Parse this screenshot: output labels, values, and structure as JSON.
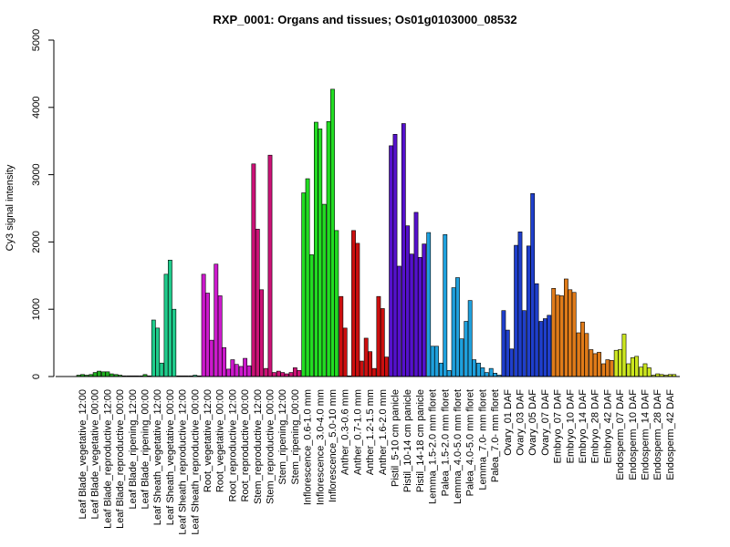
{
  "chart_data": {
    "type": "bar",
    "title": "RXP_0001: Organs and tissues; Os01g0103000_08532",
    "xlabel": "",
    "ylabel": "Cy3 signal intensity",
    "ylim": [
      0,
      5000
    ],
    "yticks": [
      0,
      1000,
      2000,
      3000,
      4000,
      5000
    ],
    "grid": false,
    "legend": "none",
    "categories": [
      "Leaf Blade_vegetative_12:00",
      "Leaf Blade_vegetative_00:00",
      "Leaf Blade_reproductive_12:00",
      "Leaf Blade_reproductive_00:00",
      "Leaf Blade_ripening_12:00",
      "Leaf Blade_ripening_00:00",
      "Leaf Sheath_vegetative_12:00",
      "Leaf Sheath_vegetative_00:00",
      "Leaf Sheath_reproductive_12:00",
      "Leaf Sheath_reproductive_00:00",
      "Root_vegetative_12:00",
      "Root_vegetative_00:00",
      "Root_reproductive_12:00",
      "Root_reproductive_00:00",
      "Stem_reproductive_12:00",
      "Stem_reproductive_00:00",
      "Stem_ripening_12:00",
      "Stem_ripening_00:00",
      "Inflorescence_0.6-1.0 mm",
      "Inflorescence_3.0-4.0 mm",
      "Inflorescence_5.0-10 mm",
      "Anther_0.3-0.6 mm",
      "Anther_0.7-1.0 mm",
      "Anther_1.2-1.5 mm",
      "Anther_1.6-2.0 mm",
      "Pistil_5-10 cm panicle",
      "Pistil_10-14 cm panicle",
      "Pistil_14-18 cm panicle",
      "Lemma_1.5-2.0 mm floret",
      "Palea_1.5-2.0 mm floret",
      "Lemma_4.0-5.0 mm floret",
      "Palea_4.0-5.0 mm floret",
      "Lemma_7.0- mm floret",
      "Palea_7.0- mm floret",
      "Ovary_01 DAF",
      "Ovary_03 DAF",
      "Ovary_05 DAF",
      "Ovary_07 DAF",
      "Embryo_07 DAF",
      "Embryo_10 DAF",
      "Embryo_14 DAF",
      "Embryo_28 DAF",
      "Embryo_42 DAF",
      "Endosperm_07 DAF",
      "Endosperm_10 DAF",
      "Endosperm_14 DAF",
      "Endosperm_28 DAF",
      "Endosperm_42 DAF"
    ],
    "groups": [
      {
        "color": "#1fae1f",
        "values": [
          20,
          30,
          20
        ]
      },
      {
        "color": "#1fae1f",
        "values": [
          30,
          60,
          80
        ]
      },
      {
        "color": "#1fae1f",
        "values": [
          70,
          70,
          40
        ]
      },
      {
        "color": "#1fae1f",
        "values": [
          30,
          20,
          10
        ]
      },
      {
        "color": "#1fae1f",
        "values": [
          10,
          10,
          10
        ]
      },
      {
        "color": "#1fae1f",
        "values": [
          10,
          30,
          10
        ]
      },
      {
        "color": "#1fcc8c",
        "values": [
          840,
          720,
          200
        ]
      },
      {
        "color": "#1fcc8c",
        "values": [
          1520,
          1730,
          1000
        ]
      },
      {
        "color": "#1fcc8c",
        "values": [
          10,
          10,
          10
        ]
      },
      {
        "color": "#1fcc8c",
        "values": [
          10,
          20,
          10
        ]
      },
      {
        "color": "#cc19cc",
        "values": [
          1520,
          1240,
          540
        ]
      },
      {
        "color": "#cc19cc",
        "values": [
          1670,
          1200,
          430
        ]
      },
      {
        "color": "#cc19cc",
        "values": [
          110,
          250,
          180
        ]
      },
      {
        "color": "#cc19cc",
        "values": [
          150,
          270,
          160
        ]
      },
      {
        "color": "#cc1277",
        "values": [
          3160,
          2190,
          1290
        ]
      },
      {
        "color": "#cc1277",
        "values": [
          120,
          3290,
          60
        ]
      },
      {
        "color": "#cc1277",
        "values": [
          80,
          60,
          40
        ]
      },
      {
        "color": "#cc1277",
        "values": [
          60,
          130,
          90
        ]
      },
      {
        "color": "#22dd22",
        "values": [
          2730,
          2940,
          1810
        ]
      },
      {
        "color": "#22dd22",
        "values": [
          3780,
          3680,
          2560
        ]
      },
      {
        "color": "#22dd22",
        "values": [
          3790,
          4270,
          2170
        ]
      },
      {
        "color": "#cc0f0f",
        "values": [
          1190,
          720,
          10
        ]
      },
      {
        "color": "#cc0f0f",
        "values": [
          2170,
          1980,
          230
        ]
      },
      {
        "color": "#cc0f0f",
        "values": [
          570,
          370,
          120
        ]
      },
      {
        "color": "#cc0f0f",
        "values": [
          1190,
          1010,
          290
        ]
      },
      {
        "color": "#5511cc",
        "values": [
          3430,
          3600,
          1640
        ]
      },
      {
        "color": "#5511cc",
        "values": [
          3760,
          2240,
          1820
        ]
      },
      {
        "color": "#5511cc",
        "values": [
          2440,
          1770,
          1970
        ]
      },
      {
        "color": "#1ea0dd",
        "values": [
          2140,
          450,
          450
        ]
      },
      {
        "color": "#1ea0dd",
        "values": [
          200,
          2110,
          90
        ]
      },
      {
        "color": "#1ea0dd",
        "values": [
          1320,
          1470,
          560
        ]
      },
      {
        "color": "#1ea0dd",
        "values": [
          820,
          1130,
          250
        ]
      },
      {
        "color": "#1ea0dd",
        "values": [
          200,
          130,
          60
        ]
      },
      {
        "color": "#1ea0dd",
        "values": [
          120,
          50,
          20
        ]
      },
      {
        "color": "#1f3fcc",
        "values": [
          980,
          690,
          410
        ]
      },
      {
        "color": "#1f3fcc",
        "values": [
          1950,
          2150,
          980
        ]
      },
      {
        "color": "#1f3fcc",
        "values": [
          1940,
          2720,
          1380
        ]
      },
      {
        "color": "#1f3fcc",
        "values": [
          820,
          860,
          910
        ]
      },
      {
        "color": "#e07b19",
        "values": [
          1310,
          1210,
          1200
        ]
      },
      {
        "color": "#e07b19",
        "values": [
          1450,
          1290,
          1250
        ]
      },
      {
        "color": "#e07b19",
        "values": [
          650,
          810,
          640
        ]
      },
      {
        "color": "#e07b19",
        "values": [
          400,
          340,
          360
        ]
      },
      {
        "color": "#e07b19",
        "values": [
          190,
          250,
          240
        ]
      },
      {
        "color": "#cce61f",
        "values": [
          390,
          400,
          630
        ]
      },
      {
        "color": "#cce61f",
        "values": [
          190,
          280,
          300
        ]
      },
      {
        "color": "#cce61f",
        "values": [
          140,
          190,
          130
        ]
      },
      {
        "color": "#cce61f",
        "values": [
          20,
          40,
          30
        ]
      },
      {
        "color": "#cce61f",
        "values": [
          20,
          30,
          30
        ]
      }
    ]
  }
}
